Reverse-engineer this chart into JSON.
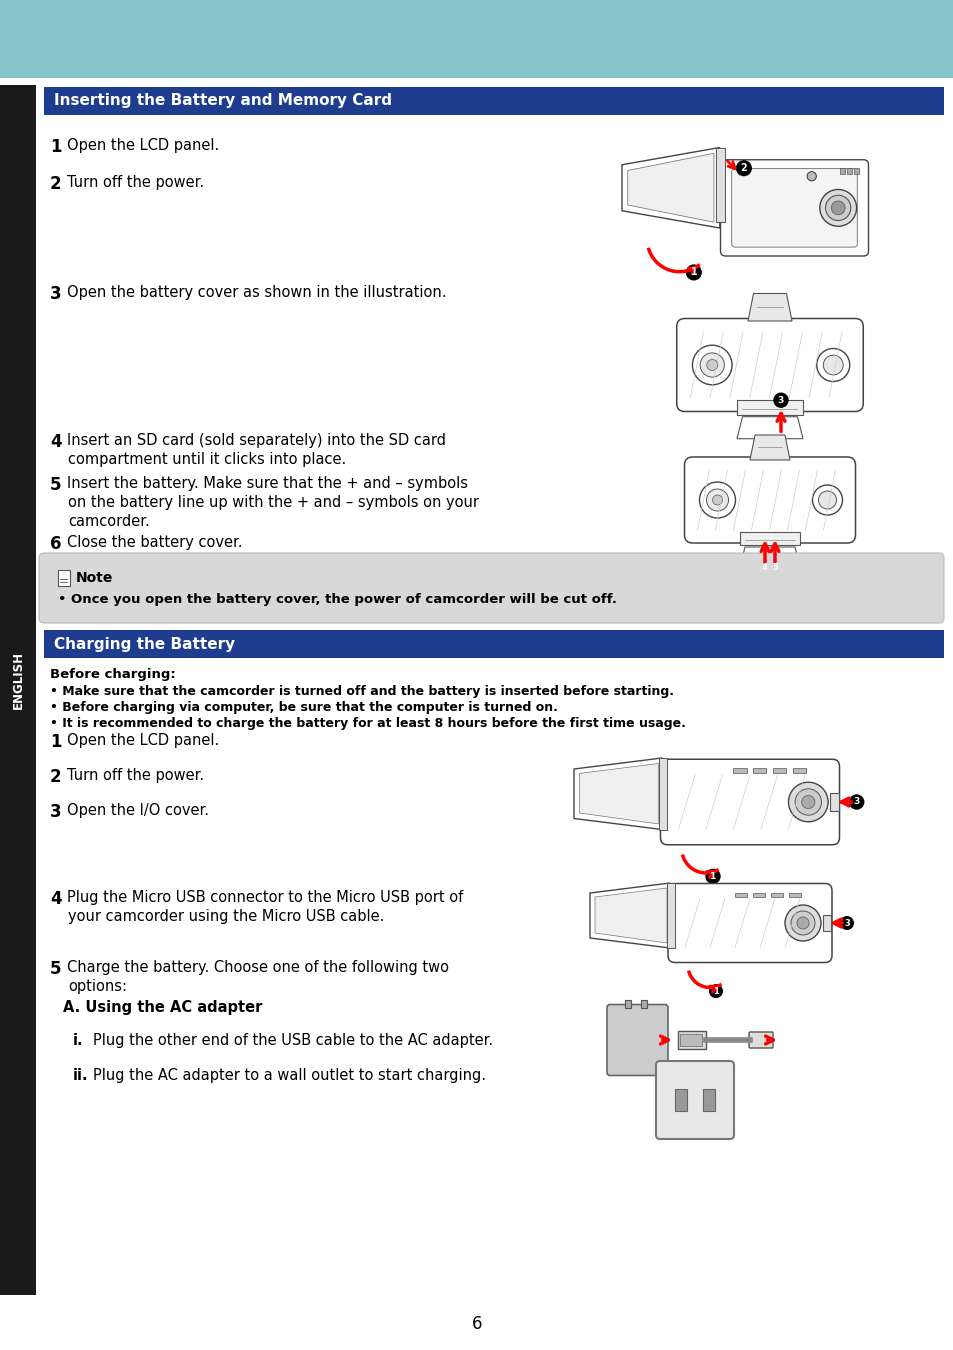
{
  "page_bg": "#ffffff",
  "header_bg": "#88c4cc",
  "sidebar_bg": "#1a1a1a",
  "sidebar_text": "ENGLISH",
  "sidebar_text_color": "#ffffff",
  "section_bg": "#1e3d8f",
  "section_text_color": "#ffffff",
  "section1_text": "Inserting the Battery and Memory Card",
  "section2_text": "Charging the Battery",
  "note_bg": "#d8d8d8",
  "note_text": "Note",
  "note_body": "Once you open the battery cover, the power of camcorder will be cut off.",
  "before_charging_title": "Before charging:",
  "before_charging_bullets": [
    "Make sure that the camcorder is turned off and the battery is inserted before starting.",
    "Before charging via computer, be sure that the computer is turned on.",
    "It is recommended to charge the battery for at least 8 hours before the first time usage."
  ],
  "page_number": "6"
}
